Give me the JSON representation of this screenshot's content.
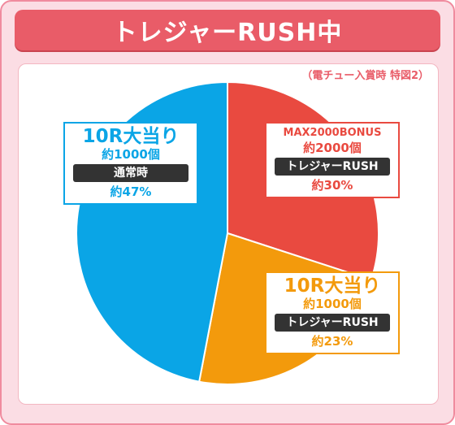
{
  "title": "トレジャーRUSH中",
  "note": "（電チュー入賞時 特図2）",
  "colors": {
    "frame_bg": "#fbdde4",
    "title_bg": "#e95c68",
    "blue": "#0aa5e6",
    "red": "#e94a40",
    "orange": "#f39a0c",
    "pill": "#333333"
  },
  "chart_data": {
    "type": "pie",
    "title": "トレジャーRUSH中",
    "slices": [
      {
        "name": "MAX2000BONUS",
        "value": 30,
        "color": "#e94a40",
        "label": {
          "name": "MAX2000BONUS",
          "payout": "約2000個",
          "mode": "トレジャーRUSH",
          "pct": "約30%"
        }
      },
      {
        "name": "10R大当り",
        "value": 23,
        "color": "#f39a0c",
        "label": {
          "name": "10R大当り",
          "payout": "約1000個",
          "mode": "トレジャーRUSH",
          "pct": "約23%"
        }
      },
      {
        "name": "10R大当り",
        "value": 47,
        "color": "#0aa5e6",
        "label": {
          "name": "10R大当り",
          "payout": "約1000個",
          "mode": "通常時",
          "pct": "約47%"
        }
      }
    ]
  }
}
